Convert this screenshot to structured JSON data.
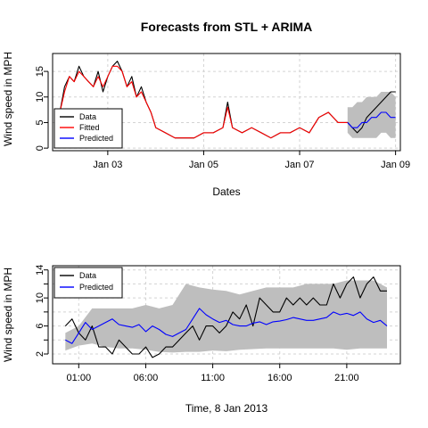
{
  "chart_data": [
    {
      "type": "line",
      "title": "Forecasts from STL + ARIMA",
      "xlabel": "Dates",
      "ylabel": "Wind speed in MPH",
      "x_unit": "days",
      "xlim": [
        1.85,
        9.1
      ],
      "ylim": [
        -0.5,
        18.5
      ],
      "x_ticks": [
        {
          "label": "Jan 03",
          "value": 3
        },
        {
          "label": "Jan 05",
          "value": 5
        },
        {
          "label": "Jan 07",
          "value": 7
        },
        {
          "label": "Jan 09",
          "value": 9
        }
      ],
      "y_ticks": [
        0,
        5,
        10,
        15
      ],
      "grid": true,
      "legend_position": "bottom-left",
      "legend": [
        {
          "name": "Data",
          "color": "#000000"
        },
        {
          "name": "Fitted",
          "color": "#ff0000"
        },
        {
          "name": "Predicted",
          "color": "#0000ff"
        }
      ],
      "band_color": "#bebebe",
      "series": [
        {
          "name": "Data",
          "color": "#000000",
          "x": [
            2.0,
            2.1,
            2.2,
            2.3,
            2.4,
            2.5,
            2.6,
            2.7,
            2.8,
            2.9,
            3.0,
            3.1,
            3.2,
            3.3,
            3.4,
            3.5,
            3.6,
            3.7,
            3.8,
            3.9,
            4.0,
            4.2,
            4.4,
            4.6,
            4.8,
            5.0,
            5.2,
            5.4,
            5.5,
            5.6,
            5.8,
            6.0,
            6.2,
            6.4,
            6.6,
            6.8,
            7.0,
            7.2,
            7.4,
            7.6,
            7.8,
            8.0,
            8.1,
            8.2,
            8.3,
            8.4,
            8.5,
            8.6,
            8.7,
            8.8,
            8.9,
            9.0
          ],
          "y": [
            7,
            12,
            14,
            13,
            16,
            14,
            13,
            12,
            15,
            11,
            14,
            16,
            17,
            15,
            12,
            14,
            10,
            12,
            9,
            7,
            4,
            3,
            2,
            2,
            2,
            3,
            3,
            4,
            9,
            4,
            3,
            4,
            3,
            2,
            3,
            3,
            4,
            3,
            6,
            7,
            5,
            5,
            4,
            3,
            4,
            6,
            7,
            8,
            9,
            10,
            11,
            11
          ]
        },
        {
          "name": "Fitted",
          "color": "#ff0000",
          "x": [
            2.0,
            2.1,
            2.2,
            2.3,
            2.4,
            2.5,
            2.6,
            2.7,
            2.8,
            2.9,
            3.0,
            3.1,
            3.2,
            3.3,
            3.4,
            3.5,
            3.6,
            3.7,
            3.8,
            3.9,
            4.0,
            4.2,
            4.4,
            4.6,
            4.8,
            5.0,
            5.2,
            5.4,
            5.5,
            5.6,
            5.8,
            6.0,
            6.2,
            6.4,
            6.6,
            6.8,
            7.0,
            7.2,
            7.4,
            7.6,
            7.8,
            8.0
          ],
          "y": [
            7,
            11,
            14,
            13,
            15,
            14,
            13,
            12,
            14,
            12,
            14,
            16,
            16,
            15,
            12,
            13,
            10,
            11,
            9,
            7,
            4,
            3,
            2,
            2,
            2,
            3,
            3,
            4,
            8,
            4,
            3,
            4,
            3,
            2,
            3,
            3,
            4,
            3,
            6,
            7,
            5,
            5
          ]
        },
        {
          "name": "Predicted",
          "color": "#0000ff",
          "x": [
            8.0,
            8.1,
            8.2,
            8.3,
            8.4,
            8.5,
            8.6,
            8.7,
            8.8,
            8.9,
            9.0
          ],
          "y": [
            5,
            4,
            4,
            5,
            5,
            6,
            6,
            7,
            7,
            6,
            6
          ],
          "band_lower": [
            3,
            2,
            2,
            2,
            2,
            2,
            2,
            3,
            3,
            2,
            2
          ],
          "band_upper": [
            8,
            8,
            9,
            9,
            10,
            10,
            10,
            11,
            11,
            11,
            10
          ]
        }
      ]
    },
    {
      "type": "line",
      "title": "",
      "xlabel": "Time, 8 Jan 2013",
      "ylabel": "Wind speed in MPH",
      "x_unit": "hours",
      "xlim": [
        -0.95,
        25.0
      ],
      "ylim": [
        0.6,
        14.6
      ],
      "x_ticks": [
        {
          "label": "01:00",
          "value": 1
        },
        {
          "label": "06:00",
          "value": 6
        },
        {
          "label": "11:00",
          "value": 11
        },
        {
          "label": "16:00",
          "value": 16
        },
        {
          "label": "21:00",
          "value": 21
        }
      ],
      "y_ticks": [
        2,
        4,
        6,
        8,
        10,
        12,
        14
      ],
      "grid": true,
      "legend_position": "top-left",
      "legend": [
        {
          "name": "Data",
          "color": "#000000"
        },
        {
          "name": "Predicted",
          "color": "#0000ff"
        }
      ],
      "band_color": "#bebebe",
      "series": [
        {
          "name": "Data",
          "color": "#000000",
          "x": [
            0,
            0.5,
            1,
            1.5,
            2,
            2.5,
            3,
            3.5,
            4,
            4.5,
            5,
            5.5,
            6,
            6.5,
            7,
            7.5,
            8,
            8.5,
            9,
            9.5,
            10,
            10.5,
            11,
            11.5,
            12,
            12.5,
            13,
            13.5,
            14,
            14.5,
            15,
            15.5,
            16,
            16.5,
            17,
            17.5,
            18,
            18.5,
            19,
            19.5,
            20,
            20.5,
            21,
            21.5,
            22,
            22.5,
            23,
            23.5,
            24
          ],
          "y": [
            6,
            7,
            5,
            4,
            6,
            3,
            3,
            2,
            4,
            3,
            2,
            2,
            3,
            1.5,
            2,
            3,
            3,
            4,
            5,
            6,
            4,
            6,
            6,
            5,
            6,
            8,
            7,
            9,
            6,
            10,
            9,
            8,
            8,
            10,
            9,
            10,
            9,
            10,
            9,
            9,
            12,
            10,
            12,
            13,
            10,
            12,
            13,
            11,
            11
          ]
        },
        {
          "name": "Predicted",
          "color": "#0000ff",
          "x": [
            0,
            0.5,
            1,
            1.5,
            2,
            2.5,
            3,
            3.5,
            4,
            4.5,
            5,
            5.5,
            6,
            6.5,
            7,
            7.5,
            8,
            8.5,
            9,
            9.5,
            10,
            10.5,
            11,
            11.5,
            12,
            12.5,
            13,
            13.5,
            14,
            14.5,
            15,
            15.5,
            16,
            16.5,
            17,
            17.5,
            18,
            18.5,
            19,
            19.5,
            20,
            20.5,
            21,
            21.5,
            22,
            22.5,
            23,
            23.5,
            24
          ],
          "y": [
            4,
            3.5,
            5,
            6.5,
            5.5,
            6,
            6.5,
            7,
            6.2,
            6,
            5.8,
            6.2,
            5.2,
            6,
            5.5,
            4.8,
            4.5,
            5,
            5.5,
            7,
            8.5,
            7.6,
            7,
            6.5,
            6.8,
            6.2,
            6,
            6,
            6.4,
            6.6,
            6.2,
            6.6,
            6.7,
            6.9,
            7.2,
            7,
            6.8,
            6.8,
            7,
            7.2,
            8,
            7.6,
            7.8,
            7.5,
            8,
            7,
            6.5,
            6.8,
            6
          ]
        },
        {
          "name": "band",
          "color": "#bebebe",
          "x": [
            0,
            1,
            2,
            3,
            4,
            5,
            6,
            7,
            8,
            9,
            10,
            11,
            12,
            13,
            14,
            15,
            16,
            17,
            18,
            19,
            20,
            21,
            22,
            23,
            24
          ],
          "band_lower": [
            2.5,
            3.2,
            3.5,
            3,
            2.8,
            2.8,
            2.6,
            2.3,
            2.2,
            2.3,
            2.3,
            2.5,
            2.4,
            2.6,
            2.7,
            2.8,
            2.8,
            2.8,
            2.8,
            2.8,
            2.8,
            2.6,
            2.8,
            2.8,
            2.8
          ],
          "band_upper": [
            5,
            6,
            8.5,
            8.5,
            8.5,
            8.5,
            9,
            8.5,
            9,
            12,
            11.5,
            11.2,
            11,
            10.5,
            11,
            11.5,
            11.5,
            11.5,
            12,
            12,
            12,
            12.5,
            12.5,
            12.5,
            11.5
          ]
        }
      ]
    }
  ]
}
